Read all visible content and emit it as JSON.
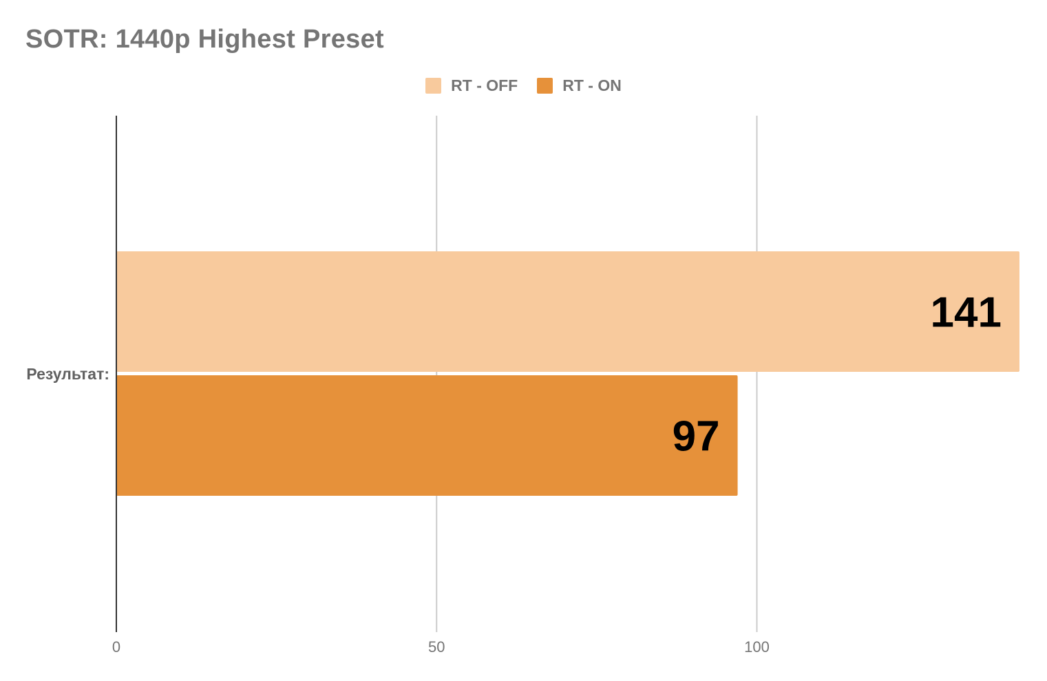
{
  "chart_data": {
    "type": "bar",
    "orientation": "horizontal",
    "title": "SOTR: 1440p Highest Preset",
    "categories": [
      "Результат:"
    ],
    "series": [
      {
        "name": "RT - OFF",
        "values": [
          141
        ],
        "color": "#f8ca9d"
      },
      {
        "name": "RT - ON",
        "values": [
          97
        ],
        "color": "#e6913a"
      }
    ],
    "data_labels": [
      "141",
      "97"
    ],
    "xlim": [
      0,
      141
    ],
    "xticks": [
      0,
      50,
      100
    ],
    "grid": "vertical",
    "legend": "top-center"
  }
}
